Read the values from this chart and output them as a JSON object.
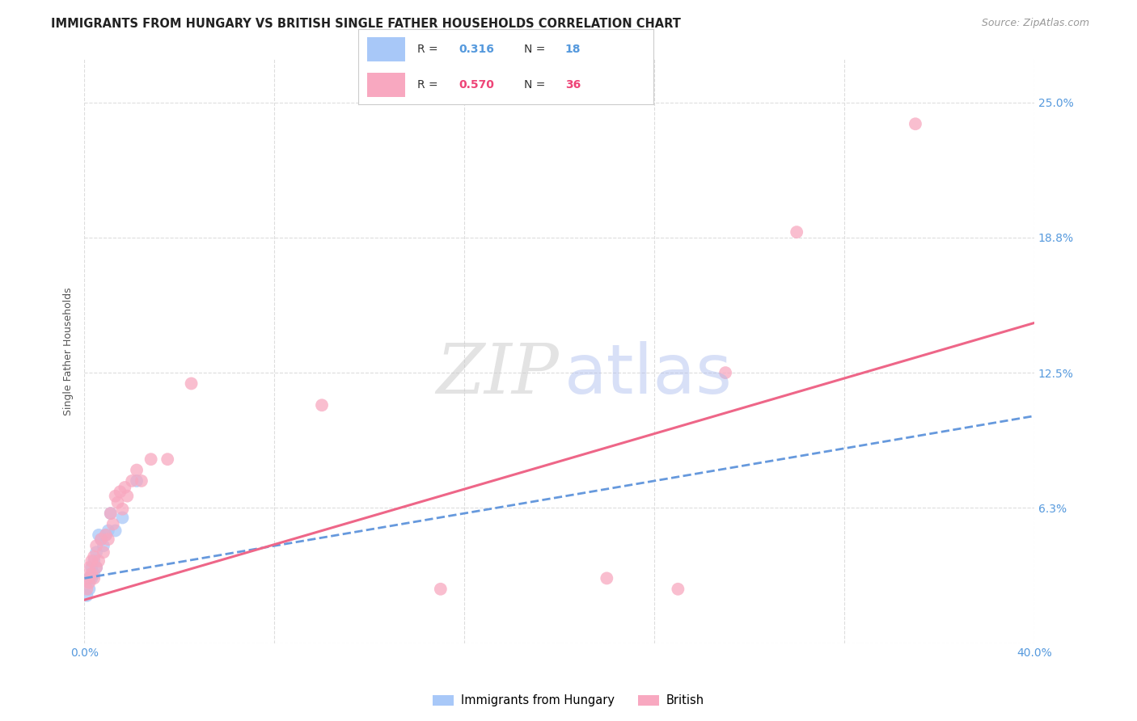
{
  "title": "IMMIGRANTS FROM HUNGARY VS BRITISH SINGLE FATHER HOUSEHOLDS CORRELATION CHART",
  "source": "Source: ZipAtlas.com",
  "ylabel": "Single Father Households",
  "xlim": [
    0.0,
    0.4
  ],
  "ylim": [
    0.0,
    0.27
  ],
  "ytick_values": [
    0.0,
    0.0625,
    0.125,
    0.1875,
    0.25
  ],
  "ytick_labels_right": [
    "",
    "6.3%",
    "12.5%",
    "18.8%",
    "25.0%"
  ],
  "xtick_values": [
    0.0,
    0.08,
    0.16,
    0.24,
    0.32,
    0.4
  ],
  "xtick_labels": [
    "0.0%",
    "",
    "",
    "",
    "",
    "40.0%"
  ],
  "bg_color": "#ffffff",
  "grid_color": "#dddddd",
  "blue_scatter_x": [
    0.001,
    0.002,
    0.002,
    0.003,
    0.003,
    0.004,
    0.004,
    0.005,
    0.005,
    0.006,
    0.007,
    0.008,
    0.009,
    0.01,
    0.011,
    0.013,
    0.016,
    0.022
  ],
  "blue_scatter_y": [
    0.022,
    0.025,
    0.03,
    0.03,
    0.035,
    0.032,
    0.038,
    0.035,
    0.042,
    0.05,
    0.048,
    0.045,
    0.05,
    0.052,
    0.06,
    0.052,
    0.058,
    0.075
  ],
  "pink_scatter_x": [
    0.001,
    0.001,
    0.002,
    0.002,
    0.003,
    0.003,
    0.004,
    0.004,
    0.005,
    0.005,
    0.006,
    0.007,
    0.008,
    0.009,
    0.01,
    0.011,
    0.012,
    0.013,
    0.014,
    0.015,
    0.016,
    0.017,
    0.018,
    0.02,
    0.022,
    0.024,
    0.028,
    0.035,
    0.045,
    0.1,
    0.15,
    0.22,
    0.25,
    0.27,
    0.3,
    0.35
  ],
  "pink_scatter_y": [
    0.025,
    0.03,
    0.028,
    0.035,
    0.032,
    0.038,
    0.03,
    0.04,
    0.035,
    0.045,
    0.038,
    0.048,
    0.042,
    0.05,
    0.048,
    0.06,
    0.055,
    0.068,
    0.065,
    0.07,
    0.062,
    0.072,
    0.068,
    0.075,
    0.08,
    0.075,
    0.085,
    0.085,
    0.12,
    0.11,
    0.025,
    0.03,
    0.025,
    0.125,
    0.19,
    0.24
  ],
  "blue_line_x": [
    0.0,
    0.4
  ],
  "blue_line_y_start": 0.03,
  "blue_line_y_end": 0.105,
  "pink_line_x": [
    0.0,
    0.4
  ],
  "pink_line_y_start": 0.02,
  "pink_line_y_end": 0.148,
  "scatter_size": 130,
  "blue_color": "#a8c8f8",
  "pink_color": "#f8a8c0",
  "blue_line_color": "#6699dd",
  "pink_line_color": "#ee6688",
  "title_fontsize": 10.5,
  "axis_label_fontsize": 9,
  "tick_fontsize": 10,
  "right_tick_color": "#5599dd",
  "legend_r1": "0.316",
  "legend_n1": "18",
  "legend_r2": "0.570",
  "legend_n2": "36",
  "legend_color1": "#a8c8f8",
  "legend_color2": "#f8a8c0",
  "legend_text_color": "#333333",
  "legend_rn_color1": "#5599dd",
  "legend_rn_color2": "#ee4477"
}
